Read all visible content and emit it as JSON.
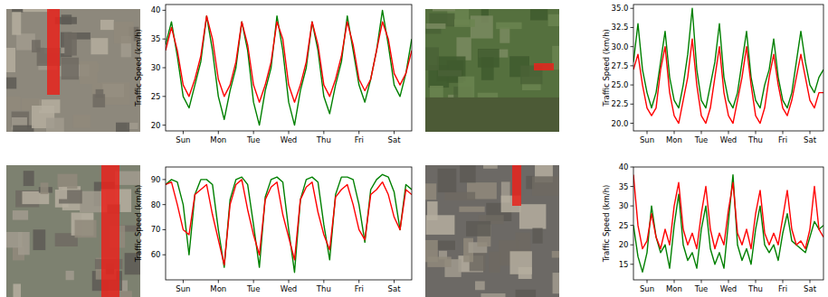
{
  "chart_data": [
    {
      "type": "line",
      "y_label": "Traffic Speed (km/h)",
      "x": [
        0,
        4,
        8,
        12,
        16,
        20,
        24,
        28,
        32,
        36,
        40,
        44,
        48,
        52,
        56,
        60,
        64,
        68,
        72,
        76,
        80,
        84,
        88,
        92,
        96,
        100,
        104,
        108,
        112,
        116,
        120,
        124,
        128,
        132,
        136,
        140,
        144,
        148,
        152,
        156,
        160,
        164,
        168
      ],
      "xlim": [
        0,
        168
      ],
      "xticks": [
        {
          "value": 12,
          "label": "Sun"
        },
        {
          "value": 36,
          "label": "Mon"
        },
        {
          "value": 60,
          "label": "Tue"
        },
        {
          "value": 84,
          "label": "Wed"
        },
        {
          "value": 108,
          "label": "Thu"
        },
        {
          "value": 132,
          "label": "Fri"
        },
        {
          "value": 156,
          "label": "Sat"
        }
      ],
      "ylim": [
        19,
        41
      ],
      "yticks": [
        20,
        25,
        30,
        35,
        40
      ],
      "series": [
        {
          "color": "#008000",
          "values": [
            34,
            38,
            32,
            25,
            23,
            27,
            31,
            39,
            33,
            25,
            21,
            26,
            30,
            38,
            33,
            24,
            20,
            26,
            30,
            39,
            33,
            24,
            20,
            26,
            30,
            38,
            33,
            25,
            22,
            27,
            31,
            39,
            33,
            27,
            24,
            28,
            33,
            40,
            34,
            27,
            25,
            29,
            35
          ]
        },
        {
          "color": "#ff0000",
          "values": [
            33,
            37,
            33,
            27,
            25,
            28,
            32,
            39,
            35,
            28,
            25,
            27,
            31,
            38,
            34,
            27,
            24,
            27,
            31,
            38,
            35,
            27,
            24,
            27,
            31,
            38,
            34,
            27,
            25,
            28,
            32,
            38,
            34,
            28,
            26,
            28,
            33,
            38,
            35,
            29,
            27,
            29,
            33
          ]
        }
      ]
    },
    {
      "type": "line",
      "y_label": "Traffic Speed (km/h)",
      "x": [
        0,
        4,
        8,
        12,
        16,
        20,
        24,
        28,
        32,
        36,
        40,
        44,
        48,
        52,
        56,
        60,
        64,
        68,
        72,
        76,
        80,
        84,
        88,
        92,
        96,
        100,
        104,
        108,
        112,
        116,
        120,
        124,
        128,
        132,
        136,
        140,
        144,
        148,
        152,
        156,
        160,
        164,
        168
      ],
      "xlim": [
        0,
        168
      ],
      "xticks": [
        {
          "value": 12,
          "label": "Sun"
        },
        {
          "value": 36,
          "label": "Mon"
        },
        {
          "value": 60,
          "label": "Tue"
        },
        {
          "value": 84,
          "label": "Wed"
        },
        {
          "value": 108,
          "label": "Thu"
        },
        {
          "value": 132,
          "label": "Fri"
        },
        {
          "value": 156,
          "label": "Sat"
        }
      ],
      "ylim": [
        19,
        35.5
      ],
      "yticks": [
        {
          "value": 20,
          "label": "20.0"
        },
        {
          "value": 22.5,
          "label": "22.5"
        },
        {
          "value": 25,
          "label": "25.0"
        },
        {
          "value": 27.5,
          "label": "27.5"
        },
        {
          "value": 30,
          "label": "30.0"
        },
        {
          "value": 32.5,
          "label": "32.5"
        },
        {
          "value": 35,
          "label": "35.0"
        }
      ],
      "series": [
        {
          "color": "#008000",
          "values": [
            28,
            33,
            27,
            24,
            22,
            24,
            28,
            32,
            26,
            23,
            22,
            25,
            29,
            35,
            27,
            23,
            22,
            25,
            28,
            33,
            26,
            23,
            22,
            24,
            28,
            32,
            26,
            23,
            22,
            25,
            27,
            31,
            26,
            23,
            22,
            24,
            28,
            32,
            28,
            25,
            24,
            26,
            27
          ]
        },
        {
          "color": "#ff0000",
          "values": [
            27,
            29,
            25,
            22,
            21,
            22,
            27,
            30,
            24,
            21,
            20,
            23,
            26,
            31,
            25,
            21,
            20,
            22,
            26,
            30,
            24,
            21,
            20,
            23,
            26,
            30,
            25,
            21,
            20,
            22,
            26,
            29,
            25,
            22,
            21,
            23,
            26,
            29,
            26,
            23,
            22,
            24,
            24
          ]
        }
      ]
    },
    {
      "type": "line",
      "y_label": "Traffic Speed (km/h)",
      "x": [
        0,
        4,
        8,
        12,
        16,
        20,
        24,
        28,
        32,
        36,
        40,
        44,
        48,
        52,
        56,
        60,
        64,
        68,
        72,
        76,
        80,
        84,
        88,
        92,
        96,
        100,
        104,
        108,
        112,
        116,
        120,
        124,
        128,
        132,
        136,
        140,
        144,
        148,
        152,
        156,
        160,
        164,
        168
      ],
      "xlim": [
        0,
        168
      ],
      "xticks": [
        {
          "value": 12,
          "label": "Sun"
        },
        {
          "value": 36,
          "label": "Mon"
        },
        {
          "value": 60,
          "label": "Tue"
        },
        {
          "value": 84,
          "label": "Wed"
        },
        {
          "value": 108,
          "label": "Thu"
        },
        {
          "value": 132,
          "label": "Fri"
        },
        {
          "value": 156,
          "label": "Sat"
        }
      ],
      "ylim": [
        50,
        95
      ],
      "yticks": [
        60,
        70,
        80,
        90
      ],
      "series": [
        {
          "color": "#008000",
          "values": [
            88,
            90,
            89,
            80,
            60,
            84,
            90,
            90,
            88,
            70,
            55,
            82,
            90,
            91,
            88,
            72,
            55,
            83,
            90,
            91,
            89,
            70,
            53,
            82,
            90,
            91,
            89,
            72,
            58,
            84,
            91,
            91,
            90,
            80,
            65,
            86,
            90,
            92,
            91,
            85,
            70,
            88,
            86
          ]
        },
        {
          "color": "#ff0000",
          "values": [
            88,
            89,
            80,
            70,
            68,
            84,
            86,
            88,
            76,
            66,
            56,
            80,
            88,
            90,
            78,
            68,
            60,
            82,
            87,
            89,
            76,
            67,
            58,
            82,
            87,
            89,
            77,
            68,
            62,
            83,
            86,
            88,
            80,
            70,
            66,
            84,
            86,
            89,
            84,
            75,
            70,
            86,
            84
          ]
        }
      ]
    },
    {
      "type": "line",
      "y_label": "Traffic Speed (km/h)",
      "x": [
        0,
        4,
        8,
        12,
        16,
        20,
        24,
        28,
        32,
        36,
        40,
        44,
        48,
        52,
        56,
        60,
        64,
        68,
        72,
        76,
        80,
        84,
        88,
        92,
        96,
        100,
        104,
        108,
        112,
        116,
        120,
        124,
        128,
        132,
        136,
        140,
        144,
        148,
        152,
        156,
        160,
        164,
        168
      ],
      "xlim": [
        0,
        168
      ],
      "xticks": [
        {
          "value": 12,
          "label": "Sun"
        },
        {
          "value": 36,
          "label": "Mon"
        },
        {
          "value": 60,
          "label": "Tue"
        },
        {
          "value": 84,
          "label": "Wed"
        },
        {
          "value": 108,
          "label": "Thu"
        },
        {
          "value": 132,
          "label": "Fri"
        },
        {
          "value": 156,
          "label": "Sat"
        }
      ],
      "ylim": [
        11,
        40
      ],
      "yticks": [
        15,
        20,
        25,
        30,
        35,
        40
      ],
      "series": [
        {
          "color": "#008000",
          "values": [
            25,
            17,
            13,
            18,
            30,
            22,
            18,
            20,
            14,
            25,
            33,
            20,
            16,
            18,
            14,
            24,
            30,
            19,
            15,
            18,
            14,
            26,
            38,
            20,
            16,
            19,
            15,
            24,
            30,
            20,
            18,
            20,
            16,
            23,
            28,
            21,
            20,
            19,
            18,
            22,
            26,
            24,
            25
          ]
        },
        {
          "color": "#ff0000",
          "values": [
            38,
            25,
            19,
            21,
            28,
            22,
            19,
            24,
            20,
            30,
            36,
            24,
            20,
            23,
            19,
            28,
            35,
            24,
            19,
            23,
            20,
            29,
            36,
            23,
            20,
            24,
            19,
            28,
            34,
            23,
            20,
            23,
            20,
            27,
            34,
            24,
            20,
            21,
            19,
            24,
            35,
            24,
            22
          ]
        }
      ]
    }
  ]
}
